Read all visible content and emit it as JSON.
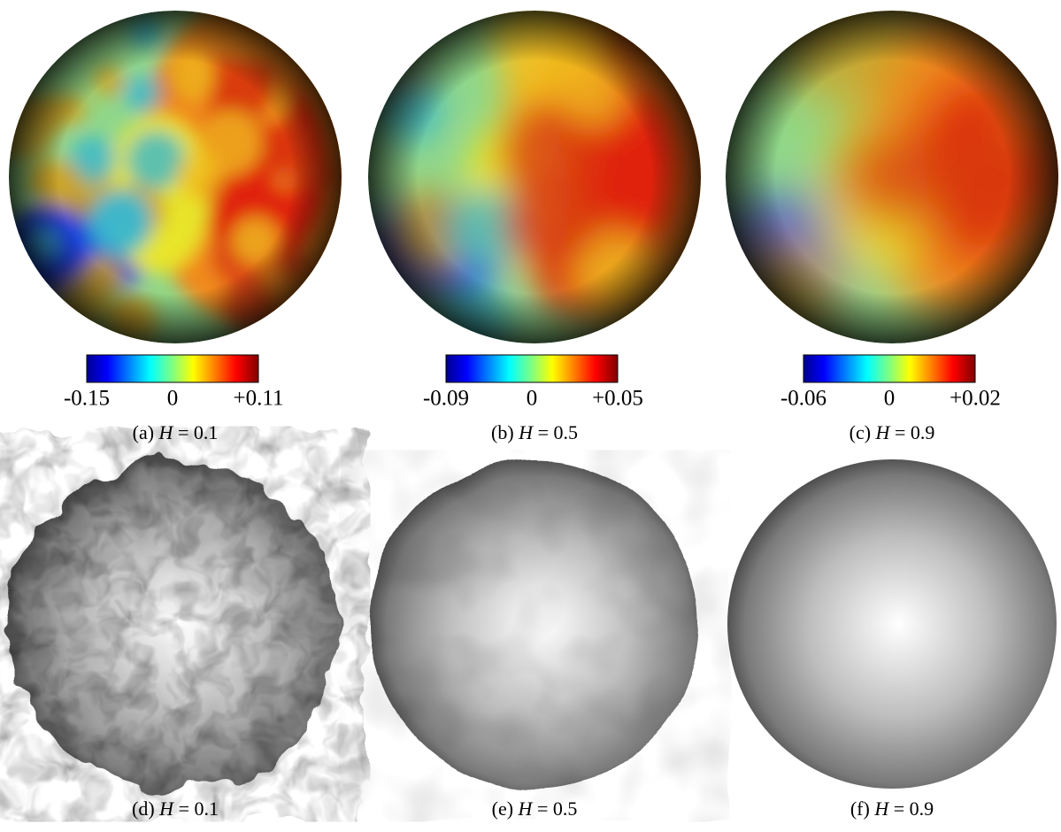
{
  "top_panels": [
    {
      "colorbar": {
        "min": "-0.15",
        "mid": "0",
        "max": "+0.11"
      },
      "caption": {
        "tag": "(a)",
        "symbol": "H",
        "equation": "= 0.1"
      }
    },
    {
      "colorbar": {
        "min": "-0.09",
        "mid": "0",
        "max": "+0.05"
      },
      "caption": {
        "tag": "(b)",
        "symbol": "H",
        "equation": "= 0.5"
      }
    },
    {
      "colorbar": {
        "min": "-0.06",
        "mid": "0",
        "max": "+0.02"
      },
      "caption": {
        "tag": "(c)",
        "symbol": "H",
        "equation": "= 0.9"
      }
    }
  ],
  "bottom_panels": [
    {
      "caption": {
        "tag": "(d)",
        "symbol": "H",
        "equation": "= 0.1"
      }
    },
    {
      "caption": {
        "tag": "(e)",
        "symbol": "H",
        "equation": "= 0.5"
      }
    },
    {
      "caption": {
        "tag": "(f)",
        "symbol": "H",
        "equation": "= 0.9"
      }
    }
  ]
}
